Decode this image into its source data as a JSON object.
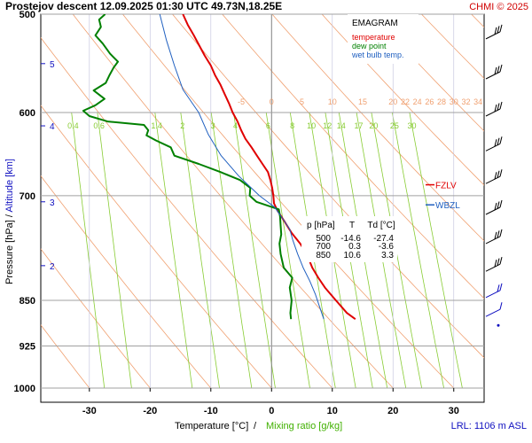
{
  "header": {
    "title": "Prostejov   descent   12.09.2025 01:30 UTC  49.73N,18.25E",
    "copyright": "CHMI © 2025"
  },
  "footer": {
    "x_label_temp": "Temperature [°C]",
    "x_label_sep": "/",
    "x_label_mix": "Mixing ratio [g/kg]",
    "lrl": "LRL: 1106 m ASL"
  },
  "colors": {
    "temperature": "#e00000",
    "dewpoint": "#008000",
    "wetbulb": "#2060c0",
    "dry_adiabat": "#f0a070",
    "mixing_ratio": "#88cc33",
    "isobar": "#a0a0a0",
    "isotherm": "#8080c0",
    "altitude": "#1010c0"
  },
  "chart_data": {
    "type": "line",
    "title": "",
    "xlabel": "Temperature [°C] / Mixing ratio [g/kg]",
    "ylabel": "Pressure [hPa] / Altitude [km]",
    "xlim": [
      -38,
      35
    ],
    "ylim": [
      1000,
      500
    ],
    "y_scale": "log",
    "grid": true,
    "pressure_ticks": [
      500,
      600,
      700,
      850,
      925,
      1000
    ],
    "temperature_ticks": [
      -30,
      -20,
      -10,
      0,
      10,
      20,
      30
    ],
    "altitude_ticks": [
      {
        "km": 5,
        "p": 548
      },
      {
        "km": 4,
        "p": 615
      },
      {
        "km": 3,
        "p": 708
      },
      {
        "km": 2,
        "p": 797
      }
    ],
    "legend": {
      "title": "EMAGRAM",
      "entries": [
        "temperature",
        "dew point",
        "wet bulb temp."
      ],
      "placement": "top-right"
    },
    "series": [
      {
        "name": "temperature",
        "points": [
          [
            500,
            -14.6
          ],
          [
            510,
            -13.8
          ],
          [
            520,
            -12.8
          ],
          [
            530,
            -11.9
          ],
          [
            540,
            -11
          ],
          [
            550,
            -10
          ],
          [
            560,
            -9.3
          ],
          [
            570,
            -8.4
          ],
          [
            580,
            -7.7
          ],
          [
            590,
            -7.0
          ],
          [
            600,
            -6.4
          ],
          [
            610,
            -5.6
          ],
          [
            620,
            -5.0
          ],
          [
            630,
            -4.3
          ],
          [
            640,
            -3.3
          ],
          [
            650,
            -2.4
          ],
          [
            660,
            -1.5
          ],
          [
            670,
            -0.6
          ],
          [
            680,
            -0.2
          ],
          [
            690,
            0.1
          ],
          [
            700,
            0.3
          ],
          [
            710,
            0.4
          ],
          [
            720,
            1.0
          ],
          [
            735,
            2.2
          ],
          [
            750,
            3.3
          ],
          [
            765,
            4.7
          ],
          [
            780,
            5.8
          ],
          [
            800,
            6.7
          ],
          [
            815,
            7.7
          ],
          [
            830,
            8.8
          ],
          [
            850,
            10.6
          ],
          [
            870,
            12.4
          ],
          [
            880,
            13.8
          ]
        ]
      },
      {
        "name": "dew point",
        "points": [
          [
            500,
            -27.4
          ],
          [
            505,
            -28.4
          ],
          [
            512,
            -28.1
          ],
          [
            520,
            -29.0
          ],
          [
            528,
            -27.8
          ],
          [
            538,
            -26.6
          ],
          [
            546,
            -25.3
          ],
          [
            552,
            -26.0
          ],
          [
            560,
            -26.7
          ],
          [
            568,
            -27.3
          ],
          [
            576,
            -29.3
          ],
          [
            585,
            -27.5
          ],
          [
            592,
            -29.0
          ],
          [
            598,
            -31.0
          ],
          [
            604,
            -30.0
          ],
          [
            610,
            -27.0
          ],
          [
            614,
            -21.0
          ],
          [
            620,
            -20.3
          ],
          [
            626,
            -20.6
          ],
          [
            632,
            -19.0
          ],
          [
            640,
            -16.6
          ],
          [
            650,
            -16.0
          ],
          [
            660,
            -12.0
          ],
          [
            670,
            -8.4
          ],
          [
            680,
            -5.2
          ],
          [
            690,
            -3.5
          ],
          [
            700,
            -3.6
          ],
          [
            708,
            -2.5
          ],
          [
            718,
            1.2
          ],
          [
            728,
            1.4
          ],
          [
            740,
            1.5
          ],
          [
            752,
            1.6
          ],
          [
            765,
            1.3
          ],
          [
            780,
            1.5
          ],
          [
            800,
            2.0
          ],
          [
            815,
            3.4
          ],
          [
            830,
            3.0
          ],
          [
            850,
            3.3
          ],
          [
            870,
            3.1
          ],
          [
            880,
            3.2
          ]
        ]
      },
      {
        "name": "wet bulb temp.",
        "points": [
          [
            500,
            -18.4
          ],
          [
            525,
            -17.3
          ],
          [
            550,
            -16.0
          ],
          [
            575,
            -14.6
          ],
          [
            600,
            -12.0
          ],
          [
            625,
            -10.4
          ],
          [
            650,
            -8.3
          ],
          [
            675,
            -5.4
          ],
          [
            700,
            -2.0
          ],
          [
            715,
            0.5
          ],
          [
            730,
            1.8
          ],
          [
            745,
            3.0
          ],
          [
            760,
            3.5
          ],
          [
            780,
            4.3
          ],
          [
            800,
            5.2
          ],
          [
            820,
            6.3
          ],
          [
            840,
            7.2
          ],
          [
            860,
            7.9
          ],
          [
            880,
            8.6
          ]
        ]
      }
    ],
    "annotations": [
      {
        "label": "FZLV",
        "p": 686
      },
      {
        "label": "WBZL",
        "p": 712
      }
    ],
    "dry_adiabat_labels": [
      -5,
      0,
      5,
      10,
      15,
      20,
      22,
      24,
      26,
      28,
      30,
      32,
      34
    ],
    "mixing_ratio_labels": [
      0.4,
      0.6,
      1.4,
      2,
      3,
      4,
      6,
      8,
      10,
      12,
      14,
      17,
      20,
      25,
      30
    ],
    "table": {
      "headers": [
        "p [hPa]",
        "T",
        "Td [°C]"
      ],
      "rows": [
        [
          "500",
          "-14.6",
          "-27.4"
        ],
        [
          "700",
          "0.3",
          "-3.6"
        ],
        [
          "850",
          "10.6",
          "3.3"
        ]
      ]
    },
    "wind_barbs": [
      {
        "p": 520,
        "dir": 275,
        "speed": 15
      },
      {
        "p": 560,
        "dir": 280,
        "speed": 20
      },
      {
        "p": 600,
        "dir": 300,
        "speed": 20
      },
      {
        "p": 640,
        "dir": 300,
        "speed": 20
      },
      {
        "p": 680,
        "dir": 290,
        "speed": 20
      },
      {
        "p": 720,
        "dir": 290,
        "speed": 20
      },
      {
        "p": 760,
        "dir": 290,
        "speed": 15
      },
      {
        "p": 800,
        "dir": 300,
        "speed": 15
      },
      {
        "p": 840,
        "dir": 310,
        "speed": 10
      },
      {
        "p": 870,
        "dir": 340,
        "speed": 5
      }
    ]
  }
}
